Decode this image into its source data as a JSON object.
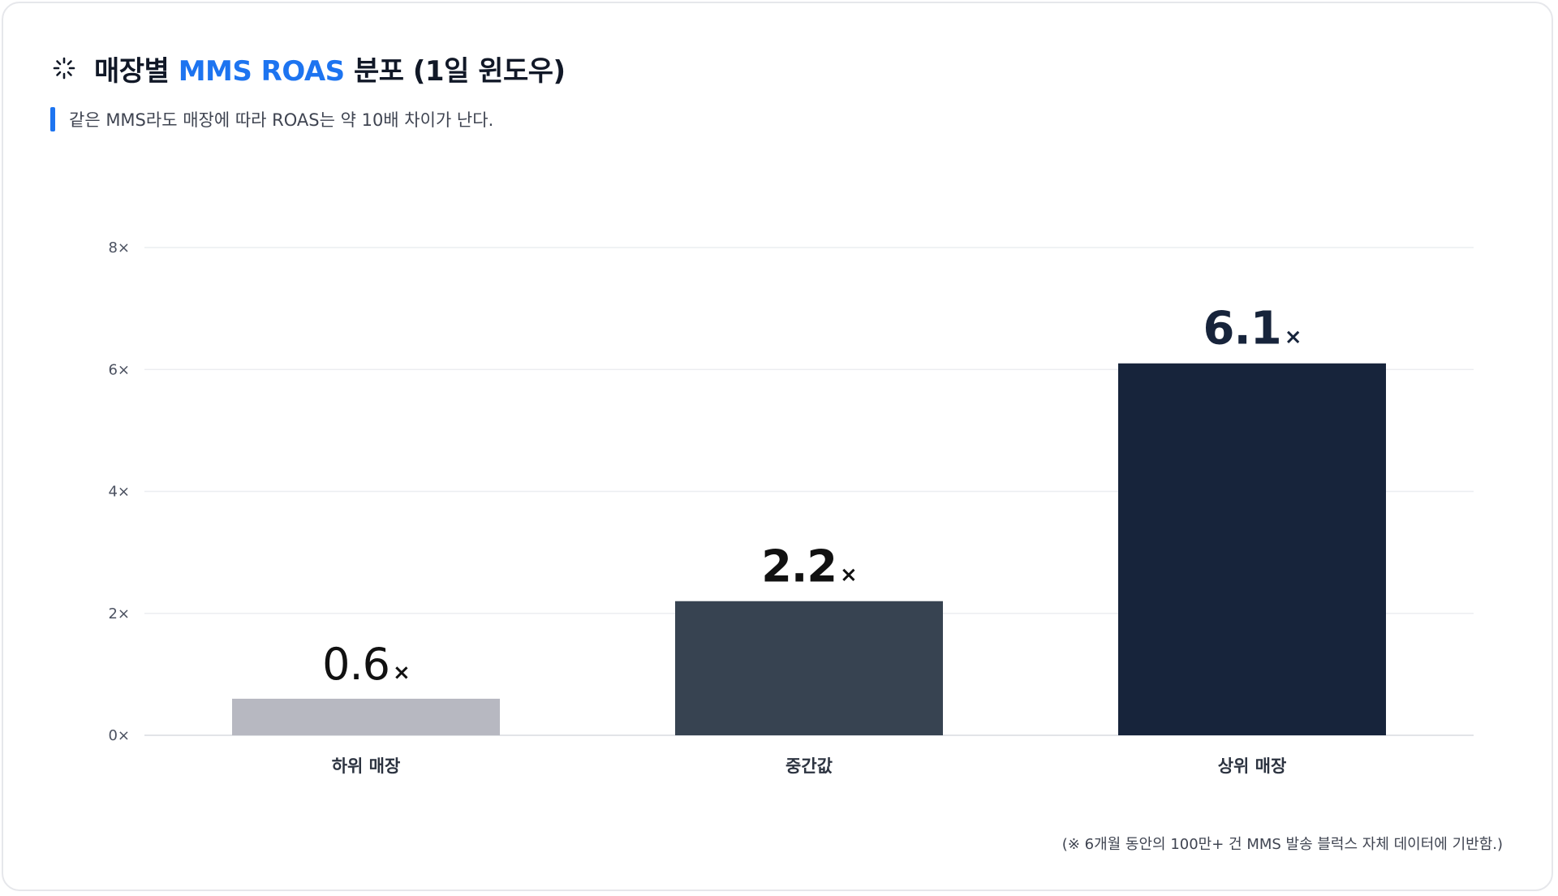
{
  "header": {
    "title_prefix": "매장별 ",
    "title_accent": "MMS ROAS",
    "title_suffix": " 분포 (1일 윈도우)",
    "accent_color": "#1d74f0",
    "icon": "spinner-icon"
  },
  "subtitle": "같은 MMS라도 매장에 따라 ROAS는 약 10배 차이가 난다.",
  "footnote": "(※ 6개월 동안의 100만+ 건 MMS 발송 블럭스 자체 데이터에 기반함.)",
  "chart_data": {
    "type": "bar",
    "categories": [
      "하위 매장",
      "중간값",
      "상위 매장"
    ],
    "values": [
      0.6,
      2.2,
      6.1
    ],
    "value_labels": [
      "0.6",
      "2.2",
      "6.1"
    ],
    "value_suffix": "×",
    "bar_colors": [
      "#b7b8c1",
      "#374351",
      "#17243b"
    ],
    "ylim": [
      0,
      8
    ],
    "yticks": [
      0,
      2,
      4,
      6,
      8
    ],
    "ytick_labels": [
      "0×",
      "2×",
      "4×",
      "6×",
      "8×"
    ],
    "grid": true,
    "legend": "none",
    "title": "",
    "xlabel": "",
    "ylabel": ""
  }
}
